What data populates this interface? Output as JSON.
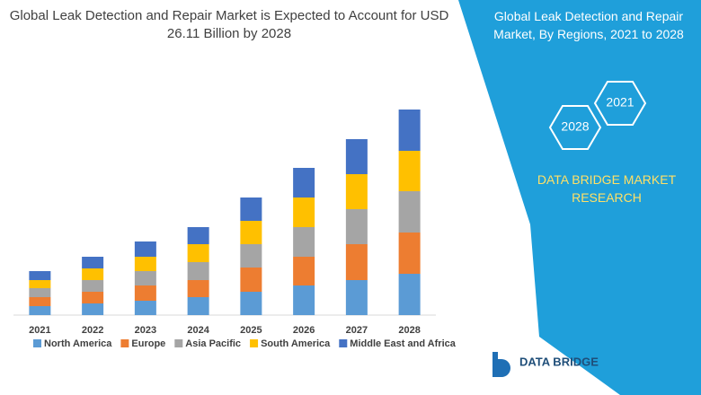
{
  "chart_data": {
    "type": "stacked-bar",
    "title": "Global Leak Detection and Repair Market is Expected to Account for USD 26.11 Billion by 2028",
    "categories": [
      "2021",
      "2022",
      "2023",
      "2024",
      "2025",
      "2026",
      "2027",
      "2028"
    ],
    "series": [
      {
        "name": "North America",
        "color": "#5b9bd5",
        "values": [
          10,
          13,
          16,
          20,
          26,
          33,
          39,
          46
        ]
      },
      {
        "name": "Europe",
        "color": "#ed7d31",
        "values": [
          10,
          13,
          17,
          19,
          27,
          32,
          40,
          46
        ]
      },
      {
        "name": "Asia Pacific",
        "color": "#a5a5a5",
        "values": [
          10,
          13,
          16,
          20,
          26,
          33,
          39,
          46
        ]
      },
      {
        "name": "South America",
        "color": "#ffc000",
        "values": [
          9,
          13,
          16,
          20,
          26,
          33,
          39,
          45
        ]
      },
      {
        "name": "Middle East and Africa",
        "color": "#4472c4",
        "values": [
          10,
          13,
          17,
          19,
          26,
          33,
          39,
          46
        ]
      }
    ],
    "ylim": [
      0,
      240
    ]
  },
  "side_panel": {
    "title": "Global Leak Detection and Repair Market, By Regions, 2021 to 2028",
    "hex_start": "2021",
    "hex_end": "2028",
    "brand": "DATA BRIDGE MARKET RESEARCH"
  },
  "logo": {
    "text": "DATA BRIDGE"
  }
}
